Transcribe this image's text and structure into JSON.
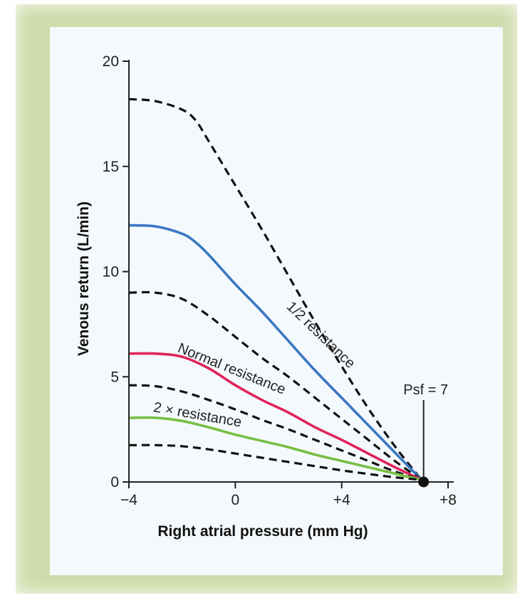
{
  "chart_data": {
    "type": "line",
    "title": "",
    "xlabel": "Right atrial pressure (mm Hg)",
    "ylabel": "Venous return (L/min)",
    "xlim": [
      -4,
      8
    ],
    "ylim": [
      0,
      20
    ],
    "x_ticks": [
      {
        "value": -4,
        "label": "−4"
      },
      {
        "value": 0,
        "label": "0"
      },
      {
        "value": 4,
        "label": "+4"
      },
      {
        "value": 8,
        "label": "+8"
      }
    ],
    "y_ticks": [
      {
        "value": 0,
        "label": "0"
      },
      {
        "value": 5,
        "label": "5"
      },
      {
        "value": 10,
        "label": "10"
      },
      {
        "value": 15,
        "label": "15"
      },
      {
        "value": 20,
        "label": "20"
      }
    ],
    "series": [
      {
        "name": "dashed-upper",
        "color": "#111111",
        "dash": true,
        "points": [
          [
            -4,
            18.2
          ],
          [
            -3,
            18.1
          ],
          [
            -2,
            17.7
          ],
          [
            -1.5,
            17.2
          ],
          [
            -1,
            16.2
          ],
          [
            0,
            14.1
          ],
          [
            1,
            12.0
          ],
          [
            2,
            9.8
          ],
          [
            3,
            7.6
          ],
          [
            4,
            5.5
          ],
          [
            5,
            3.5
          ],
          [
            6,
            1.7
          ],
          [
            7,
            0.1
          ]
        ]
      },
      {
        "name": "half-resistance",
        "color": "#3b78c2",
        "dash": false,
        "points": [
          [
            -4,
            12.2
          ],
          [
            -3,
            12.15
          ],
          [
            -2,
            11.8
          ],
          [
            -1.5,
            11.4
          ],
          [
            -1,
            10.8
          ],
          [
            0,
            9.4
          ],
          [
            1,
            8.1
          ],
          [
            2,
            6.7
          ],
          [
            3,
            5.3
          ],
          [
            4,
            4.0
          ],
          [
            5,
            2.7
          ],
          [
            6,
            1.4
          ],
          [
            7,
            0.1
          ]
        ]
      },
      {
        "name": "dashed-middle",
        "color": "#111111",
        "dash": true,
        "points": [
          [
            -4,
            9.0
          ],
          [
            -3,
            9.0
          ],
          [
            -2,
            8.7
          ],
          [
            -1,
            7.9
          ],
          [
            0,
            6.9
          ],
          [
            1,
            5.9
          ],
          [
            2,
            5.0
          ],
          [
            3,
            4.0
          ],
          [
            4,
            3.0
          ],
          [
            5,
            2.0
          ],
          [
            6,
            1.0
          ],
          [
            7,
            0.1
          ]
        ]
      },
      {
        "name": "normal-resistance",
        "color": "#e0245a",
        "dash": false,
        "points": [
          [
            -4,
            6.1
          ],
          [
            -3,
            6.1
          ],
          [
            -2,
            5.95
          ],
          [
            -1,
            5.4
          ],
          [
            0,
            4.6
          ],
          [
            1,
            3.9
          ],
          [
            2,
            3.3
          ],
          [
            3,
            2.6
          ],
          [
            4,
            2.0
          ],
          [
            5,
            1.35
          ],
          [
            6,
            0.7
          ],
          [
            7,
            0.1
          ]
        ]
      },
      {
        "name": "dashed-lower",
        "color": "#111111",
        "dash": true,
        "points": [
          [
            -4,
            4.6
          ],
          [
            -3,
            4.55
          ],
          [
            -2,
            4.3
          ],
          [
            -1,
            3.9
          ],
          [
            0,
            3.45
          ],
          [
            1,
            2.95
          ],
          [
            2,
            2.5
          ],
          [
            3,
            2.0
          ],
          [
            4,
            1.5
          ],
          [
            5,
            1.0
          ],
          [
            6,
            0.5
          ],
          [
            7,
            0.1
          ]
        ]
      },
      {
        "name": "double-resistance",
        "color": "#79be45",
        "dash": false,
        "points": [
          [
            -4,
            3.05
          ],
          [
            -3,
            3.05
          ],
          [
            -2,
            2.9
          ],
          [
            -1,
            2.6
          ],
          [
            0,
            2.25
          ],
          [
            1,
            1.95
          ],
          [
            2,
            1.65
          ],
          [
            3,
            1.3
          ],
          [
            4,
            1.0
          ],
          [
            5,
            0.7
          ],
          [
            6,
            0.4
          ],
          [
            7,
            0.1
          ]
        ]
      },
      {
        "name": "dashed-bottom",
        "color": "#111111",
        "dash": true,
        "points": [
          [
            -4,
            1.75
          ],
          [
            -3,
            1.75
          ],
          [
            -2,
            1.7
          ],
          [
            -1,
            1.55
          ],
          [
            0,
            1.35
          ],
          [
            1,
            1.15
          ],
          [
            2,
            0.95
          ],
          [
            3,
            0.75
          ],
          [
            4,
            0.55
          ],
          [
            5,
            0.38
          ],
          [
            6,
            0.22
          ],
          [
            7,
            0.1
          ]
        ]
      }
    ],
    "annotations": [
      {
        "id": "half",
        "text": "1/2 resistance",
        "x": 1.9,
        "y": 8.3,
        "angle": 44
      },
      {
        "id": "normal",
        "text": "Normal resistance",
        "x": -2.2,
        "y": 6.2,
        "angle": 22
      },
      {
        "id": "double",
        "text": "2 × resistance",
        "x": -3.1,
        "y": 3.35,
        "angle": 10
      }
    ],
    "psf": {
      "text": "Psf = 7",
      "x": 7,
      "y": 0
    }
  }
}
